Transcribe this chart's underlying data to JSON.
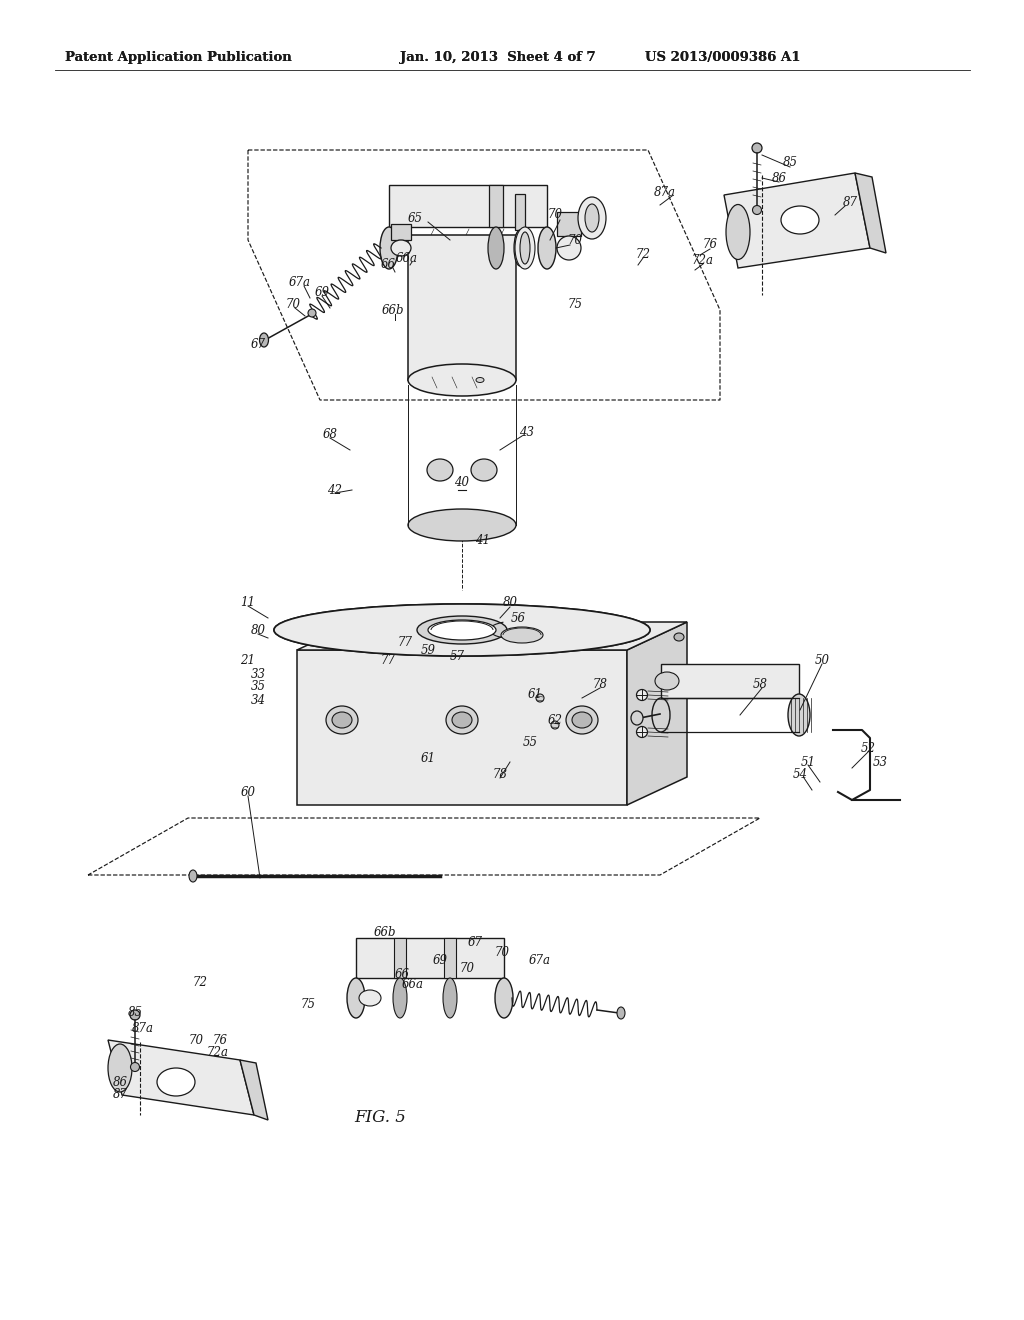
{
  "background_color": "#ffffff",
  "header_left": "Patent Application Publication",
  "header_center": "Jan. 10, 2013  Sheet 4 of 7",
  "header_right": "US 2013/0009386 A1",
  "figure_label": "FIG. 5",
  "label_fontsize": 8.5,
  "header_fontsize": 9.5,
  "line_color": "#1a1a1a",
  "fill_light": "#ebebeb",
  "fill_mid": "#d4d4d4",
  "fill_dark": "#b8b8b8",
  "fill_white": "#ffffff"
}
